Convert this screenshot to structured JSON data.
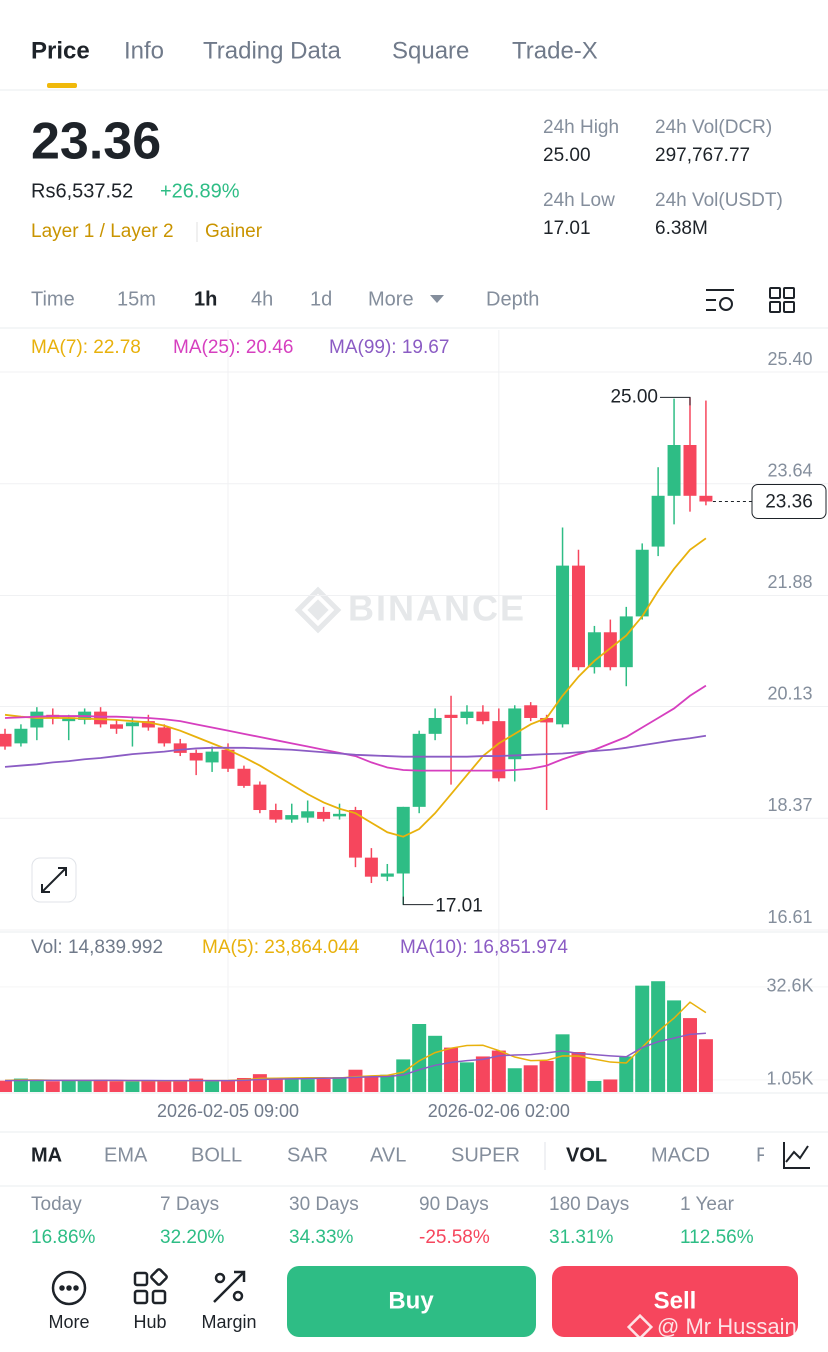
{
  "tabs": [
    "Price",
    "Info",
    "Trading Data",
    "Square",
    "Trade-X"
  ],
  "price": {
    "last": "23.36",
    "fiat": "Rs6,537.52",
    "change": "+26.89%",
    "tags": [
      "Layer 1 / Layer 2",
      "Gainer"
    ]
  },
  "stats": [
    {
      "label": "24h High",
      "value": "25.00"
    },
    {
      "label": "24h Vol(DCR)",
      "value": "297,767.77"
    },
    {
      "label": "24h Low",
      "value": "17.01"
    },
    {
      "label": "24h Vol(USDT)",
      "value": "6.38M"
    }
  ],
  "intervals": [
    "Time",
    "15m",
    "1h",
    "4h",
    "1d",
    "More",
    "Depth"
  ],
  "chart_watermark": "BINANCE",
  "chart_data": [
    {
      "type": "candlestick",
      "categories": [
        null,
        null,
        null,
        null,
        null,
        null,
        null,
        null,
        null,
        null,
        null,
        null,
        null,
        null,
        "2026-02-05 09:00",
        null,
        null,
        null,
        null,
        null,
        null,
        null,
        null,
        null,
        null,
        null,
        null,
        null,
        null,
        null,
        null,
        "2026-02-06 02:00",
        null,
        null,
        null,
        null,
        null,
        null,
        null,
        null,
        null,
        null,
        null,
        null,
        null
      ],
      "open": [
        19.7,
        19.55,
        19.8,
        20.0,
        19.9,
        19.92,
        20.05,
        19.85,
        19.82,
        19.9,
        19.8,
        19.55,
        19.4,
        19.25,
        19.45,
        19.15,
        18.9,
        18.5,
        18.35,
        18.38,
        18.47,
        18.4,
        18.5,
        17.75,
        17.45,
        17.5,
        18.55,
        19.7,
        20.0,
        19.95,
        20.05,
        19.9,
        19.3,
        20.15,
        19.95,
        19.85,
        22.35,
        20.75,
        21.3,
        20.75,
        21.55,
        22.65,
        23.45,
        24.25,
        23.45
      ],
      "high": [
        19.78,
        19.85,
        20.12,
        20.1,
        20.0,
        20.1,
        20.12,
        19.92,
        19.95,
        20.0,
        19.85,
        19.62,
        19.45,
        19.5,
        19.55,
        19.2,
        18.95,
        18.6,
        18.6,
        18.65,
        18.55,
        18.6,
        18.55,
        17.9,
        17.65,
        18.55,
        19.75,
        20.1,
        20.3,
        20.15,
        20.15,
        20.1,
        20.15,
        20.2,
        20.0,
        22.95,
        22.6,
        21.4,
        21.5,
        21.7,
        22.7,
        23.9,
        24.98,
        25.0,
        24.95
      ],
      "low": [
        19.45,
        19.5,
        19.6,
        19.85,
        19.6,
        19.85,
        19.8,
        19.7,
        19.5,
        19.75,
        19.5,
        19.35,
        19.05,
        19.1,
        19.1,
        18.85,
        18.45,
        18.3,
        18.3,
        18.3,
        18.32,
        18.35,
        17.6,
        17.35,
        17.38,
        17.01,
        18.45,
        19.6,
        18.9,
        19.85,
        19.85,
        18.95,
        18.95,
        19.9,
        18.5,
        19.8,
        20.7,
        20.65,
        20.7,
        20.45,
        21.5,
        22.5,
        23.0,
        23.2,
        23.3
      ],
      "close": [
        19.5,
        19.78,
        20.05,
        19.95,
        19.96,
        20.05,
        19.85,
        19.78,
        19.88,
        19.8,
        19.55,
        19.4,
        19.28,
        19.42,
        19.15,
        18.88,
        18.5,
        18.35,
        18.42,
        18.48,
        18.36,
        18.44,
        17.75,
        17.45,
        17.5,
        18.55,
        19.7,
        19.95,
        19.95,
        20.05,
        19.9,
        19.0,
        20.1,
        19.95,
        19.88,
        22.35,
        20.75,
        21.3,
        20.75,
        21.55,
        22.6,
        23.45,
        24.25,
        23.45,
        23.36
      ],
      "up_color": "#2ebd85",
      "down_color": "#f6465d",
      "series": [
        {
          "name": "MA(7): 22.78",
          "color": "#e8b10c",
          "values": [
            20.0,
            19.97,
            19.95,
            19.95,
            19.95,
            19.94,
            19.93,
            19.92,
            19.9,
            19.88,
            19.83,
            19.75,
            19.65,
            19.55,
            19.45,
            19.33,
            19.2,
            19.05,
            18.9,
            18.75,
            18.62,
            18.52,
            18.45,
            18.3,
            18.15,
            18.08,
            18.2,
            18.45,
            18.75,
            19.05,
            19.35,
            19.55,
            19.7,
            19.85,
            19.95,
            20.3,
            20.6,
            20.85,
            21.05,
            21.25,
            21.55,
            21.95,
            22.3,
            22.6,
            22.78
          ]
        },
        {
          "name": "MA(25): 20.46",
          "color": "#d63fbf",
          "values": [
            19.95,
            19.96,
            19.97,
            19.98,
            19.98,
            19.98,
            19.97,
            19.97,
            19.96,
            19.95,
            19.93,
            19.9,
            19.85,
            19.8,
            19.75,
            19.7,
            19.65,
            19.6,
            19.55,
            19.5,
            19.45,
            19.4,
            19.35,
            19.25,
            19.17,
            19.13,
            19.12,
            19.12,
            19.12,
            19.12,
            19.12,
            19.12,
            19.13,
            19.15,
            19.2,
            19.3,
            19.38,
            19.45,
            19.55,
            19.65,
            19.8,
            19.95,
            20.1,
            20.3,
            20.46
          ]
        },
        {
          "name": "MA(99): 19.67",
          "color": "#8b5cc4",
          "values": [
            19.18,
            19.2,
            19.22,
            19.25,
            19.27,
            19.3,
            19.32,
            19.35,
            19.38,
            19.4,
            19.42,
            19.45,
            19.47,
            19.48,
            19.48,
            19.48,
            19.47,
            19.46,
            19.45,
            19.43,
            19.41,
            19.39,
            19.37,
            19.36,
            19.35,
            19.34,
            19.34,
            19.34,
            19.34,
            19.34,
            19.35,
            19.35,
            19.36,
            19.37,
            19.38,
            19.39,
            19.41,
            19.43,
            19.45,
            19.48,
            19.52,
            19.56,
            19.6,
            19.63,
            19.67
          ]
        }
      ],
      "ylim": [
        16.61,
        25.4
      ],
      "yticks": [
        16.61,
        18.37,
        20.13,
        21.88,
        23.64,
        {
          "value": 25.4,
          "label": "25.40"
        }
      ],
      "grid": true,
      "high_label": "25.00",
      "low_label": "17.01",
      "last_label": "23.36"
    },
    {
      "type": "bar",
      "title": "Vol: 14,839.992",
      "values": [
        800,
        1500,
        1200,
        600,
        700,
        900,
        1100,
        600,
        500,
        700,
        800,
        600,
        1500,
        600,
        900,
        1700,
        3000,
        1600,
        1500,
        1300,
        1400,
        2000,
        4500,
        2500,
        2800,
        8000,
        20000,
        16000,
        12000,
        7000,
        9000,
        11000,
        5000,
        6000,
        7500,
        16500,
        10500,
        700,
        1200,
        9000,
        33000,
        34500,
        28000,
        22000,
        14839.992
      ],
      "series": [
        {
          "name": "MA(5): 23,864.044",
          "color": "#e8b10c",
          "values": [
            900,
            1000,
            1000,
            950,
            900,
            900,
            900,
            850,
            800,
            750,
            700,
            700,
            800,
            800,
            850,
            1050,
            1550,
            1600,
            1700,
            1800,
            1800,
            1700,
            2100,
            2400,
            2600,
            3700,
            7500,
            10300,
            11800,
            12700,
            12800,
            11000,
            8800,
            7600,
            7700,
            9200,
            9100,
            8100,
            7100,
            6800,
            12100,
            17500,
            22000,
            27400,
            23864.044
          ]
        },
        {
          "name": "MA(10): 16,851.974",
          "color": "#8b5cc4",
          "values": [
            800,
            850,
            900,
            900,
            900,
            900,
            900,
            900,
            850,
            850,
            800,
            800,
            800,
            800,
            800,
            900,
            1200,
            1300,
            1400,
            1500,
            1600,
            1700,
            1900,
            2100,
            2200,
            2700,
            4500,
            6000,
            7000,
            7600,
            8000,
            9200,
            9500,
            9600,
            10200,
            10900,
            10000,
            9600,
            9200,
            8900,
            12000,
            14000,
            15200,
            16500,
            16851.974
          ]
        }
      ],
      "ylim": [
        -3050,
        40000
      ],
      "yticks": [
        {
          "value": 1050,
          "label": "1.05K"
        },
        {
          "value": 32600,
          "label": "32.6K"
        }
      ]
    }
  ],
  "indicators": [
    "MA",
    "EMA",
    "BOLL",
    "SAR",
    "AVL",
    "SUPER",
    "VOL",
    "MACD",
    "F"
  ],
  "performance": [
    {
      "period": "Today",
      "change": "16.86%"
    },
    {
      "period": "7 Days",
      "change": "32.20%"
    },
    {
      "period": "30 Days",
      "change": "34.33%"
    },
    {
      "period": "90 Days",
      "change": "-25.58%"
    },
    {
      "period": "180 Days",
      "change": "31.31%"
    },
    {
      "period": "1 Year",
      "change": "112.56%"
    }
  ],
  "actions": [
    "More",
    "Hub",
    "Margin"
  ],
  "buttons": [
    "Buy",
    "Sell"
  ],
  "watermark": "@ Mr Hussain"
}
